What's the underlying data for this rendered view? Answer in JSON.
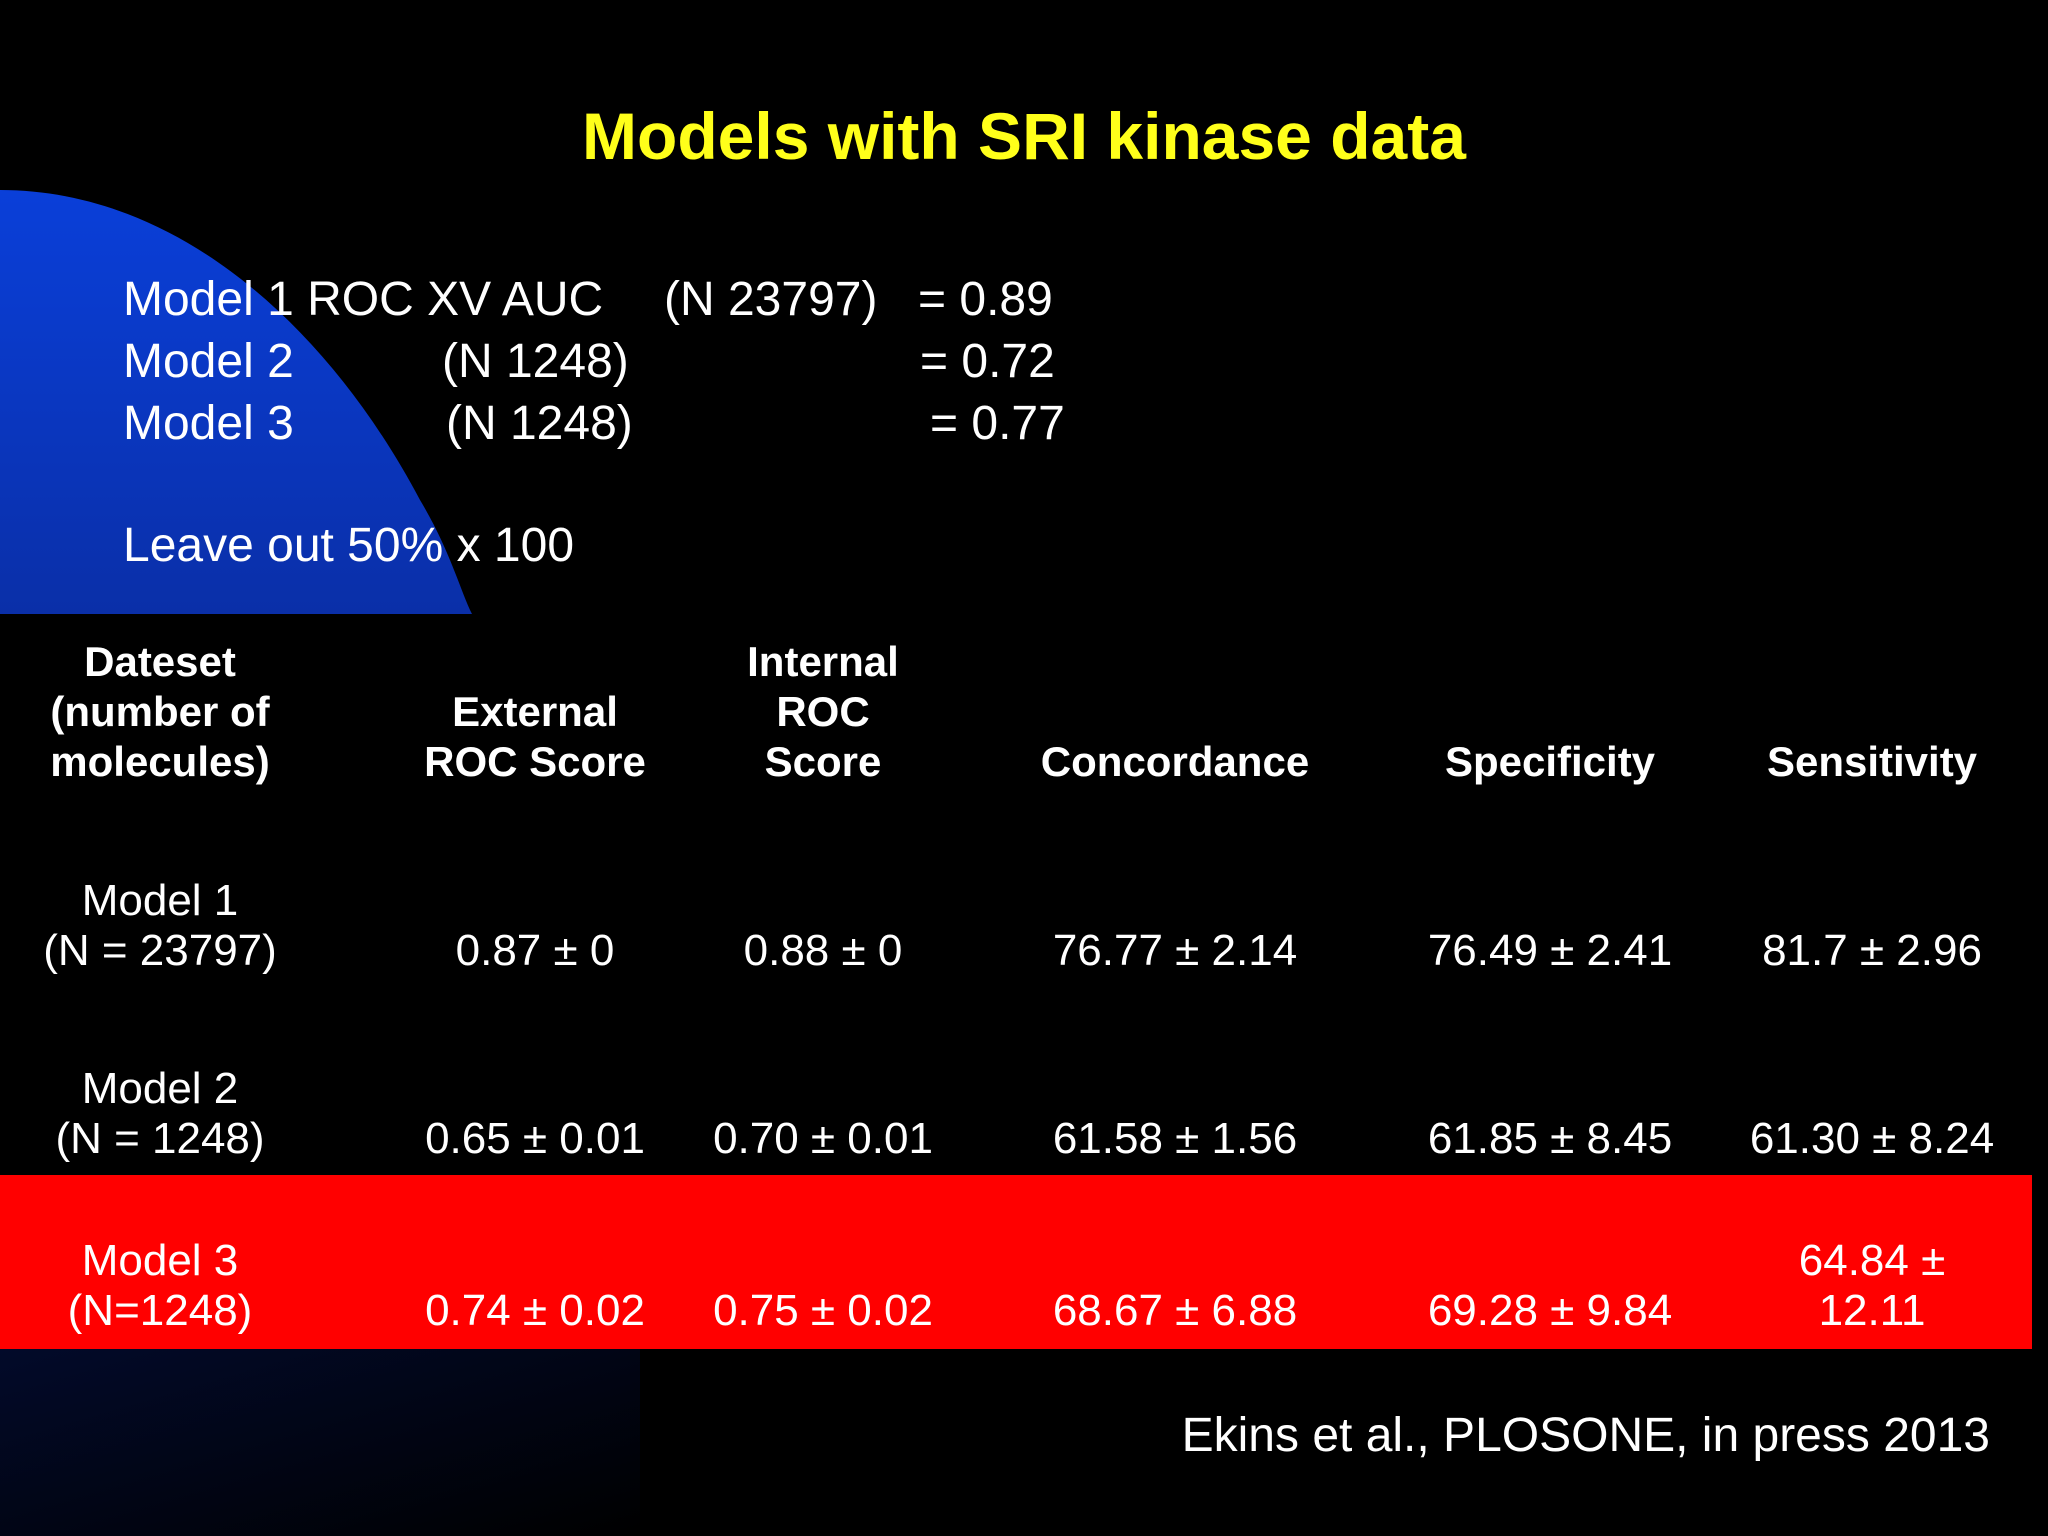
{
  "slide": {
    "title": "Models with SRI kinase data",
    "summary": [
      {
        "label": "Model 1 ROC XV AUC",
        "n": "(N 23797)",
        "value": "= 0.89"
      },
      {
        "label": "Model 2",
        "n": "(N 1248)",
        "value": "= 0.72"
      },
      {
        "label": "Model 3",
        "n": "(N 1248)",
        "value": "= 0.77"
      }
    ],
    "note": "Leave out 50% x 100",
    "citation": "Ekins et al., PLOSONE, in press 2013"
  },
  "table": {
    "headers": [
      "Dateset\n(number of\nmolecules)",
      "External\nROC Score",
      "Internal\nROC\nScore",
      "Concordance",
      "Specificity",
      "Sensitivity"
    ],
    "rows": [
      [
        "Model 1\n(N = 23797)",
        "0.87 ± 0",
        "0.88 ± 0",
        "76.77 ± 2.14",
        "76.49 ± 2.41",
        "81.7 ± 2.96"
      ],
      [
        "Model 2\n(N = 1248)",
        "0.65 ± 0.01",
        "0.70 ± 0.01",
        "61.58 ± 1.56",
        "61.85 ± 8.45",
        "61.30 ± 8.24"
      ],
      [
        "Model 3\n(N=1248)",
        "0.74 ± 0.02",
        "0.75 ± 0.02",
        "68.67 ± 6.88",
        "69.28 ± 9.84",
        "64.84 ±\n12.11"
      ]
    ],
    "highlight_color": "#ff0000"
  },
  "colors": {
    "title": "#ffff1a",
    "background": "#000000",
    "accent_blue": "#0a3fd9"
  }
}
